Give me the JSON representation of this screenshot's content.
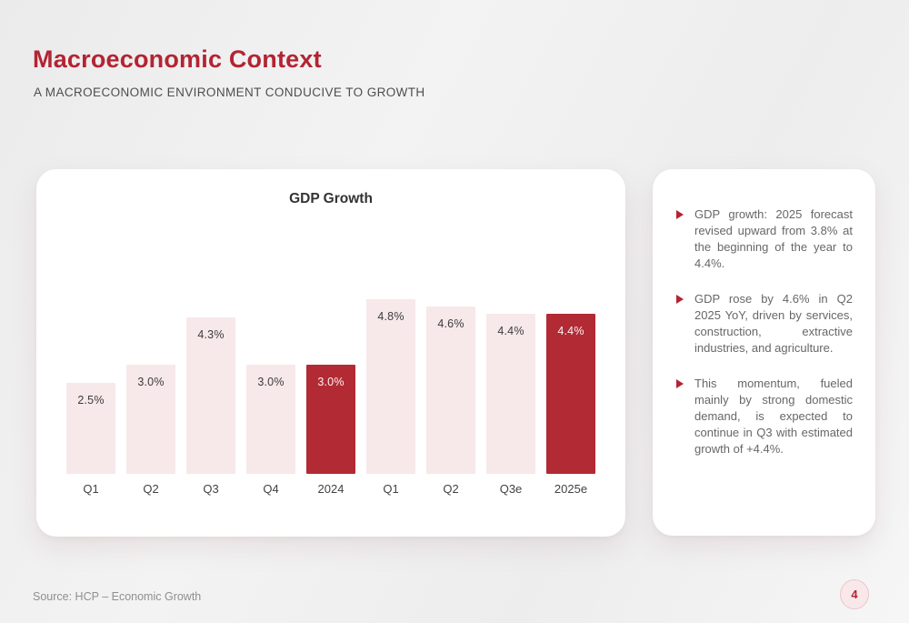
{
  "header": {
    "title": "Macroeconomic Context",
    "subtitle": "A MACROECONOMIC ENVIRONMENT CONDUCIVE TO GROWTH"
  },
  "chart_data": {
    "type": "bar",
    "title": "GDP Growth",
    "categories": [
      "Q1",
      "Q2",
      "Q3",
      "Q4",
      "2024",
      "Q1",
      "Q2",
      "Q3e",
      "2025e"
    ],
    "values": [
      2.5,
      3.0,
      4.3,
      3.0,
      3.0,
      4.8,
      4.6,
      4.4,
      4.4
    ],
    "value_labels": [
      "2.5%",
      "3.0%",
      "4.3%",
      "3.0%",
      "3.0%",
      "4.8%",
      "4.6%",
      "4.4%",
      "4.4%"
    ],
    "highlighted_indices": [
      4,
      8
    ],
    "xlabel": "",
    "ylabel": "",
    "ylim": [
      0,
      5
    ],
    "grid": false,
    "legend": false,
    "colors": {
      "bar": "#F7E8EA",
      "highlight": "#B22A34",
      "value_label": "#3C3C3C",
      "highlight_value_label": "#FDF4F5"
    }
  },
  "insights": {
    "bullets": [
      "GDP growth: 2025 forecast revised upward from 3.8% at the beginning of the year to 4.4%.",
      "GDP rose by 4.6% in Q2 2025 YoY, driven by services, construction, extractive industries, and agriculture.",
      "This momentum, fueled mainly by strong domestic demand, is expected to continue in Q3 with estimated growth of +4.4%."
    ],
    "bullet_color": "#B32433"
  },
  "footer": {
    "source": "Source: HCP – Economic Growth",
    "page_number": "4"
  },
  "colors": {
    "accent": "#B32433",
    "card_background": "#FFFFFF",
    "page_background": "#EFEFEF",
    "body_text": "#676767"
  }
}
